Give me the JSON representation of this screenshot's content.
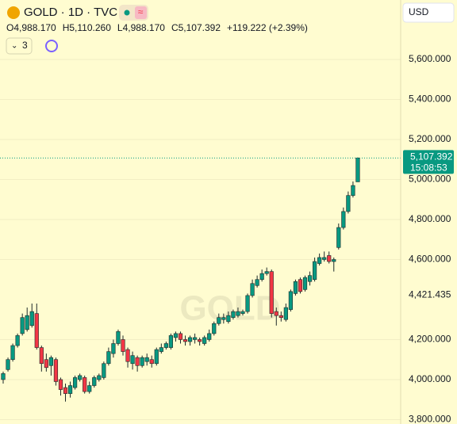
{
  "chart_data": {
    "type": "candlestick",
    "title": "GOLD · 1D · TVC",
    "ohlc_labels": [
      "O4,988.170",
      "H5,110.260",
      "L4,988.170",
      "C5,107.392",
      "+119.222 (+2.39%)"
    ],
    "indicator_count": "3",
    "currency": "USD",
    "watermark": "GOLD",
    "up_color": "#089981",
    "down_color": "#f23645",
    "open": [
      4000,
      4050,
      4100,
      4170,
      4230,
      4250,
      4270,
      4330,
      4160,
      4100,
      4070,
      4100,
      4000,
      3960,
      3930,
      3960,
      4000,
      4010,
      3940,
      3970,
      4000,
      4010,
      4080,
      4130,
      4180,
      4200,
      4150,
      4080,
      4110,
      4070,
      4090,
      4100,
      4080,
      4140,
      4160,
      4160,
      4210,
      4230,
      4200,
      4190,
      4200,
      4200,
      4180,
      4200,
      4230,
      4280,
      4300,
      4290,
      4310,
      4320,
      4330,
      4340,
      4420,
      4470,
      4500,
      4530,
      4540,
      4340,
      4320,
      4300,
      4350,
      4430,
      4500,
      4450,
      4490,
      4500,
      4580,
      4600,
      4620,
      4590,
      4660,
      4760,
      4840,
      4920,
      4988.17
    ],
    "high": [
      4040,
      4110,
      4180,
      4230,
      4330,
      4360,
      4380,
      4380,
      4170,
      4130,
      4120,
      4110,
      4010,
      3980,
      3990,
      4020,
      4030,
      4020,
      3990,
      4020,
      4030,
      4090,
      4160,
      4200,
      4250,
      4220,
      4160,
      4140,
      4120,
      4120,
      4130,
      4120,
      4160,
      4180,
      4190,
      4230,
      4240,
      4240,
      4220,
      4220,
      4230,
      4210,
      4220,
      4250,
      4290,
      4330,
      4330,
      4340,
      4350,
      4360,
      4350,
      4430,
      4500,
      4520,
      4550,
      4560,
      4550,
      4360,
      4340,
      4380,
      4450,
      4500,
      4510,
      4520,
      4540,
      4610,
      4630,
      4640,
      4640,
      4610,
      4780,
      4860,
      4940,
      4990,
      5110.26
    ],
    "low": [
      3980,
      4040,
      4090,
      4160,
      4220,
      4240,
      4260,
      4150,
      4040,
      4040,
      4020,
      3970,
      3920,
      3890,
      3910,
      3950,
      3990,
      3930,
      3930,
      3960,
      3990,
      4000,
      4070,
      4110,
      4170,
      4120,
      4060,
      4050,
      4040,
      4060,
      4070,
      4060,
      4070,
      4130,
      4150,
      4150,
      4190,
      4180,
      4170,
      4170,
      4180,
      4170,
      4170,
      4190,
      4220,
      4270,
      4280,
      4280,
      4300,
      4310,
      4320,
      4330,
      4410,
      4460,
      4490,
      4520,
      4310,
      4270,
      4290,
      4290,
      4340,
      4420,
      4430,
      4440,
      4470,
      4490,
      4570,
      4590,
      4580,
      4540,
      4650,
      4750,
      4830,
      4910,
      4988.17
    ],
    "close": [
      4030,
      4100,
      4170,
      4220,
      4310,
      4320,
      4340,
      4160,
      4080,
      4060,
      4110,
      3990,
      3950,
      3930,
      3970,
      4010,
      4020,
      3940,
      3970,
      4010,
      4020,
      4080,
      4140,
      4180,
      4240,
      4140,
      4090,
      4120,
      4070,
      4110,
      4110,
      4080,
      4150,
      4160,
      4180,
      4220,
      4230,
      4200,
      4190,
      4210,
      4210,
      4190,
      4210,
      4230,
      4280,
      4310,
      4310,
      4320,
      4340,
      4340,
      4340,
      4420,
      4480,
      4500,
      4530,
      4540,
      4330,
      4320,
      4310,
      4360,
      4440,
      4490,
      4440,
      4510,
      4520,
      4590,
      4610,
      4610,
      4590,
      4600,
      4760,
      4840,
      4920,
      4970,
      5107.392
    ],
    "ylim": [
      3778,
      5897
    ],
    "yticks": [
      {
        "value": 3800,
        "label": "3,800.000"
      },
      {
        "value": 4000,
        "label": "4,000.000"
      },
      {
        "value": 4200,
        "label": "4,200.000"
      },
      {
        "value": 4600,
        "label": "4,600.000"
      },
      {
        "value": 4800,
        "label": "4,800.000"
      },
      {
        "value": 5000,
        "label": "5,000.000"
      },
      {
        "value": 5200,
        "label": "5,200.000"
      },
      {
        "value": 5400,
        "label": "5,400.000"
      },
      {
        "value": 5600,
        "label": "5,600.000"
      }
    ],
    "last_price": {
      "value": 5107.392,
      "label": "5,107.392"
    },
    "countdown": "15:08:53",
    "marker_price": {
      "value": 4421.435,
      "label": "4,421.435"
    },
    "grid": true
  }
}
